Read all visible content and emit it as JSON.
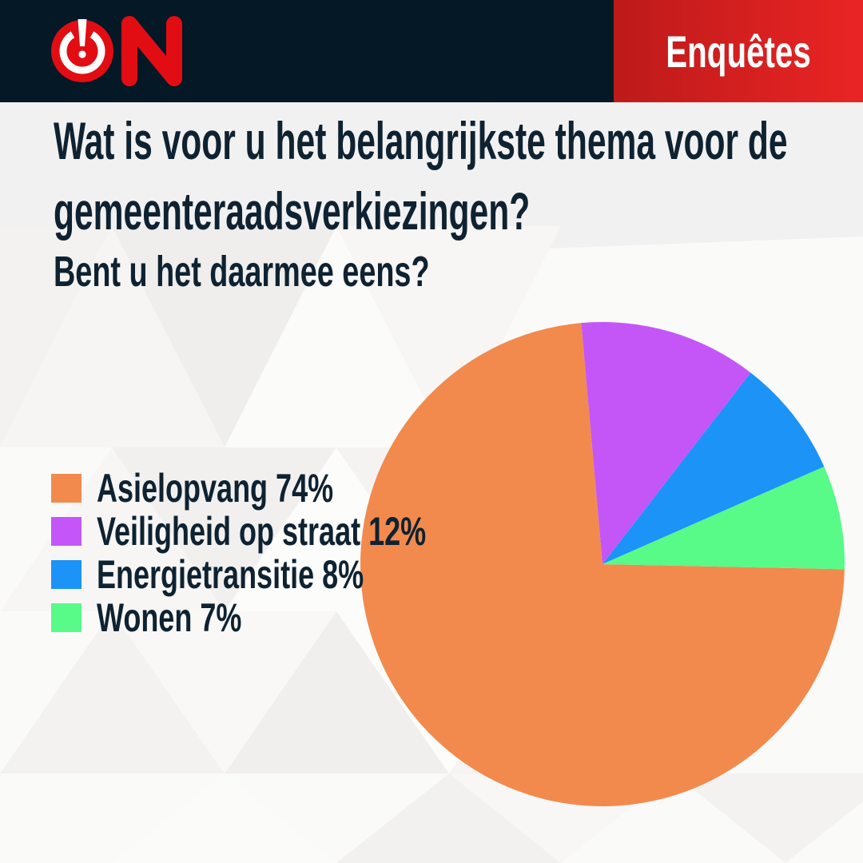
{
  "header": {
    "brand": "ON",
    "badge_label": "Enquêtes",
    "colors": {
      "bar_background": "#041826",
      "logo_red": "#e20d13",
      "badge_gradient_left": "#bd1a1a",
      "badge_gradient_right": "#ea2424"
    }
  },
  "question": {
    "title_line1": "Wat is voor u het belangrijkste thema voor de",
    "title_line2": "gemeenteraadsverkiezingen?",
    "subtitle": "Bent u het daarmee eens?",
    "text_color": "#0e2231"
  },
  "chart_data": {
    "type": "pie",
    "title": "Wat is voor u het belangrijkste thema voor de gemeenteraadsverkiezingen?",
    "legend_position": "left",
    "start_angle_deg": 91.2,
    "slices": [
      {
        "label": "Asielopvang",
        "value": 74,
        "color": "#f28a4d",
        "legend_text": "Asielopvang 74%"
      },
      {
        "label": "Veiligheid op straat",
        "value": 12,
        "color": "#c456f8",
        "legend_text": "Veiligheid op straat 12%"
      },
      {
        "label": "Energietransitie",
        "value": 8,
        "color": "#1b93f7",
        "legend_text": "Energietransitie 8%"
      },
      {
        "label": "Wonen",
        "value": 7,
        "color": "#58fa88",
        "legend_text": "Wonen 7%"
      }
    ]
  }
}
